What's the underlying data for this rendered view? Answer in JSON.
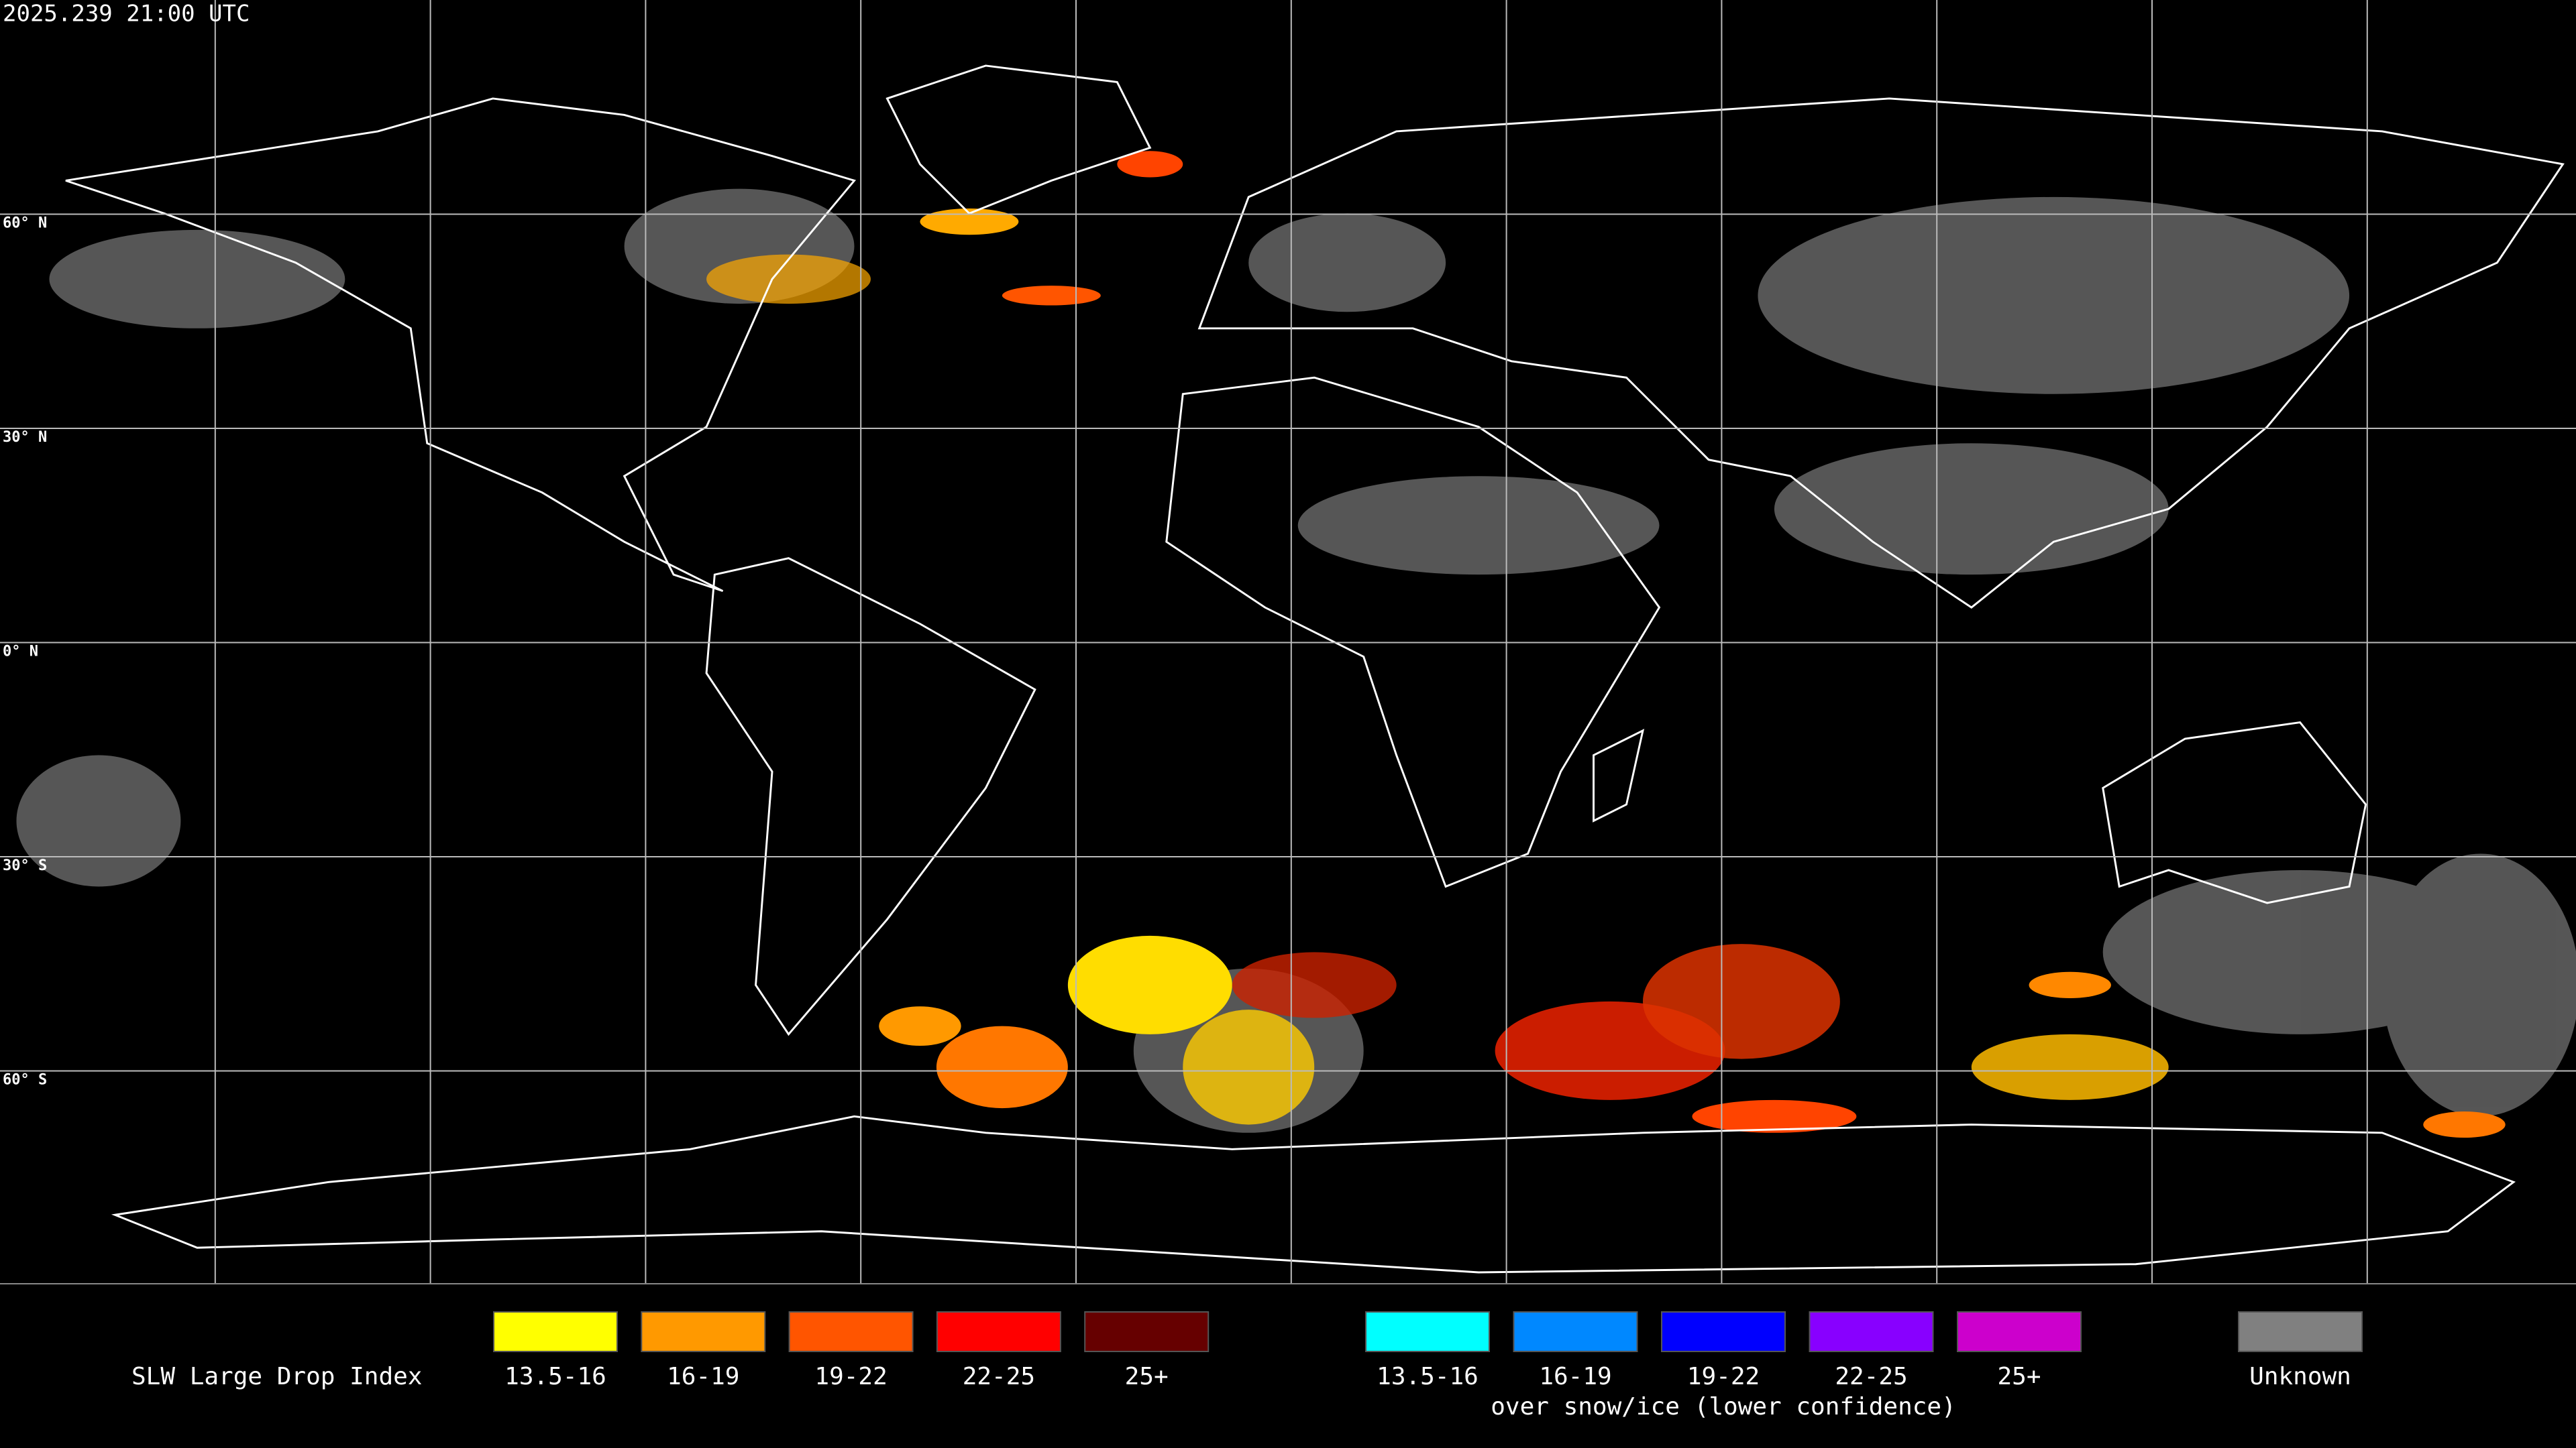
{
  "header": {
    "title": "2025.239 21:00 UTC"
  },
  "map": {
    "latitude_labels": [
      "60° N",
      "30° N",
      "0° N",
      "30° S",
      "60° S"
    ]
  },
  "legend": {
    "title": "SLW Large Drop Index",
    "liquid": [
      {
        "label": "13.5-16",
        "color": "#ffff00"
      },
      {
        "label": "16-19",
        "color": "#ff9900"
      },
      {
        "label": "19-22",
        "color": "#ff5500"
      },
      {
        "label": "22-25",
        "color": "#ff0000"
      },
      {
        "label": "25+",
        "color": "#660000"
      }
    ],
    "snow_ice": [
      {
        "label": "13.5-16",
        "color": "#00ffff"
      },
      {
        "label": "16-19",
        "color": "#0088ff"
      },
      {
        "label": "19-22",
        "color": "#0000ff"
      },
      {
        "label": "22-25",
        "color": "#8800ff"
      },
      {
        "label": "25+",
        "color": "#cc00cc"
      }
    ],
    "snow_ice_caption": "over snow/ice (lower confidence)",
    "unknown": {
      "label": "Unknown",
      "color": "#808080"
    }
  }
}
